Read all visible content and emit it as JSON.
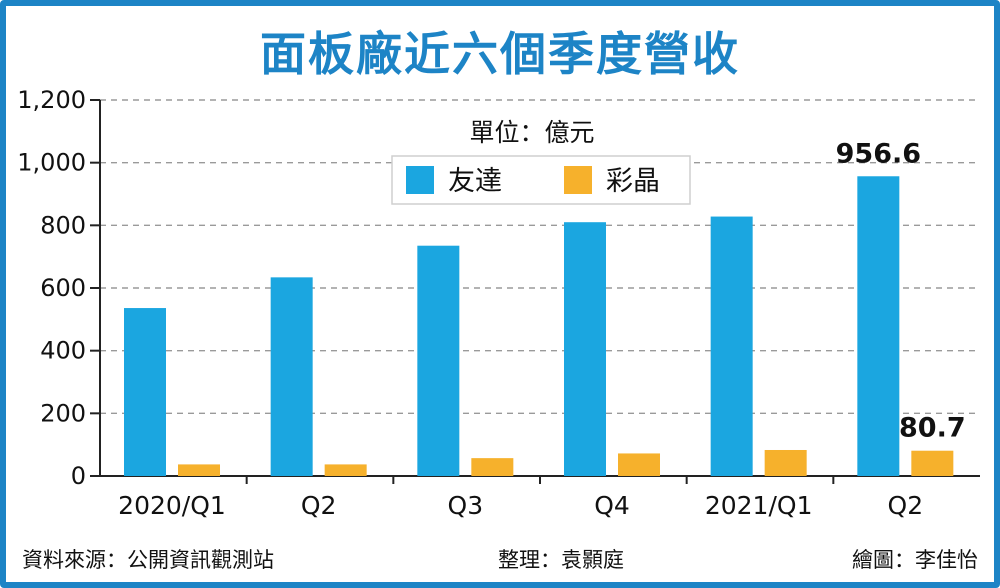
{
  "chart_data": {
    "type": "bar",
    "title": "面板廠近六個季度營收",
    "unit": "單位：億元",
    "categories": [
      "2020/Q1",
      "Q2",
      "Q3",
      "Q4",
      "2021/Q1",
      "Q2"
    ],
    "series": [
      {
        "name": "友達",
        "color": "#1ba6e0",
        "values": [
          536,
          634,
          735,
          810,
          828,
          956.6
        ]
      },
      {
        "name": "彩晶",
        "color": "#f6b12c",
        "values": [
          37,
          37,
          57,
          72,
          83,
          80.7
        ]
      }
    ],
    "data_labels": [
      {
        "series": 0,
        "index": 5,
        "text": "956.6"
      },
      {
        "series": 1,
        "index": 5,
        "text": "80.7"
      }
    ],
    "ylim": [
      0,
      1200
    ],
    "yticks": [
      0,
      200,
      400,
      600,
      800,
      1000,
      1200
    ],
    "ytick_labels": [
      "0",
      "200",
      "400",
      "600",
      "800",
      "1,000",
      "1,200"
    ],
    "grid": true,
    "grid_style": "dashed",
    "legend_position": "top-center"
  },
  "footer": {
    "source": "資料來源：公開資訊觀測站",
    "editor": "整理：袁顥庭",
    "artist": "繪圖：李佳怡"
  }
}
